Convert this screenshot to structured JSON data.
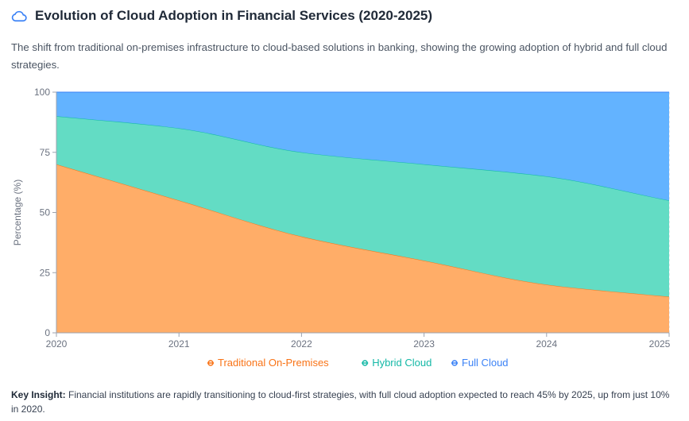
{
  "header": {
    "icon": "cloud-icon",
    "title": "Evolution of Cloud Adoption in Financial Services (2020-2025)",
    "subtitle": "The shift from traditional on-premises infrastructure to cloud-based solutions in banking, showing the growing adoption of hybrid and full cloud strategies."
  },
  "insight": {
    "label": "Key Insight:",
    "text": "Financial institutions are rapidly transitioning to cloud-first strategies, with full cloud adoption expected to reach 45% by 2025, up from just 10% in 2020."
  },
  "colors": {
    "traditional_fill": "#ffad68",
    "traditional_stroke": "#f97316",
    "hybrid_fill": "#63dcc4",
    "hybrid_stroke": "#14b8a6",
    "full_fill": "#63b3ff",
    "full_stroke": "#3b82f6",
    "icon": "#3b82f6"
  },
  "chart_data": {
    "type": "area",
    "stacked": true,
    "x": [
      "2020",
      "2021",
      "2022",
      "2023",
      "2024",
      "2025"
    ],
    "series": [
      {
        "name": "Traditional On-Premises",
        "values": [
          70,
          55,
          40,
          30,
          20,
          15
        ]
      },
      {
        "name": "Hybrid Cloud",
        "values": [
          20,
          30,
          35,
          40,
          45,
          40
        ]
      },
      {
        "name": "Full Cloud",
        "values": [
          10,
          15,
          25,
          30,
          35,
          45
        ]
      }
    ],
    "ylabel": "Percentage (%)",
    "xlabel": "",
    "ylim": [
      0,
      100
    ],
    "yticks": [
      "0",
      "25",
      "50",
      "75",
      "100"
    ],
    "grid": true,
    "legend_position": "bottom"
  }
}
